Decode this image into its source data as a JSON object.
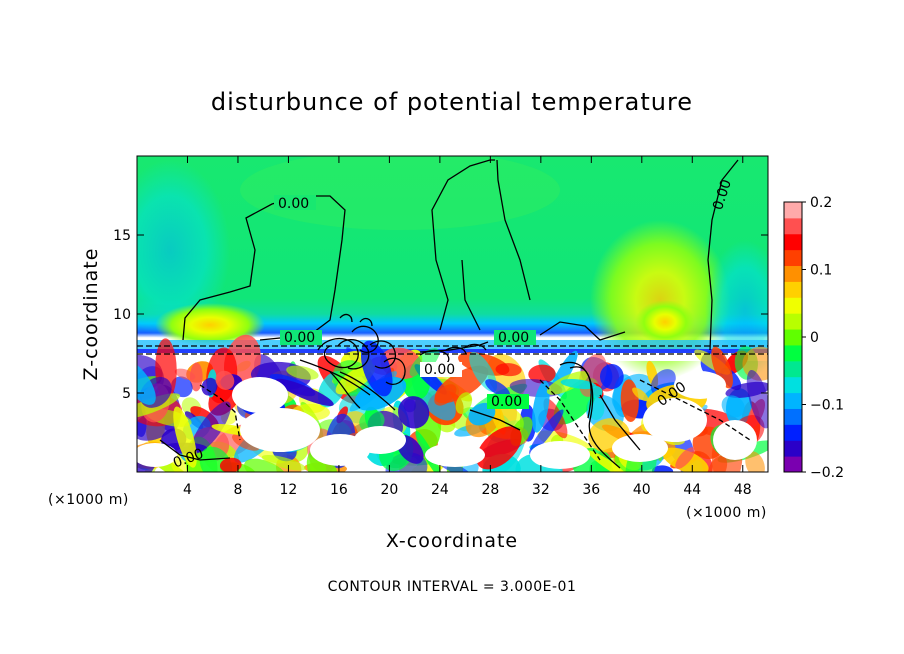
{
  "chart_data": {
    "type": "heatmap",
    "title": "disturbunce of potential temperature",
    "xlabel": "X-coordinate",
    "ylabel": "Z-coordinate",
    "x_unit": "(×1000 m)",
    "y_unit": "(×1000 m)",
    "xlim": [
      0,
      50
    ],
    "ylim": [
      0,
      20
    ],
    "x_ticks": [
      4,
      8,
      12,
      16,
      20,
      24,
      28,
      32,
      36,
      40,
      44,
      48
    ],
    "y_ticks": [
      5,
      10,
      15
    ],
    "colorbar": {
      "min": -0.2,
      "max": 0.2,
      "ticks": [
        -0.2,
        -0.1,
        0,
        0.1,
        0.2
      ],
      "tick_labels": [
        "−0.2",
        "−0.1",
        "0",
        "0.1",
        "0.2"
      ],
      "colors": [
        "#7a00b0",
        "#2a00c8",
        "#0020ff",
        "#0070ff",
        "#00b4ff",
        "#00e0e0",
        "#00e890",
        "#00ff40",
        "#60ff00",
        "#b8ff00",
        "#f0ff00",
        "#ffd000",
        "#ff9000",
        "#ff4000",
        "#ff0000",
        "#ff5050",
        "#ffaaaa"
      ]
    },
    "contour_interval_text": "CONTOUR INTERVAL = 3.000E-01",
    "contour_labels": [
      {
        "text": "0.00",
        "x": 10.2,
        "y": 17.2
      },
      {
        "text": "0.00",
        "x": 10.0,
        "y": 8.5
      },
      {
        "text": "0.00",
        "x": 30.0,
        "y": 8.5
      },
      {
        "text": "0.00",
        "x": 24.0,
        "y": 6.6
      },
      {
        "text": "0.00",
        "x": 29.0,
        "y": 4.5
      },
      {
        "text": "0.00",
        "x": 42.5,
        "y": 5.2
      },
      {
        "text": "0.00",
        "x": 4.5,
        "y": 1.0
      },
      {
        "text": "0.00",
        "x": 46.5,
        "y": 17.5
      }
    ]
  }
}
